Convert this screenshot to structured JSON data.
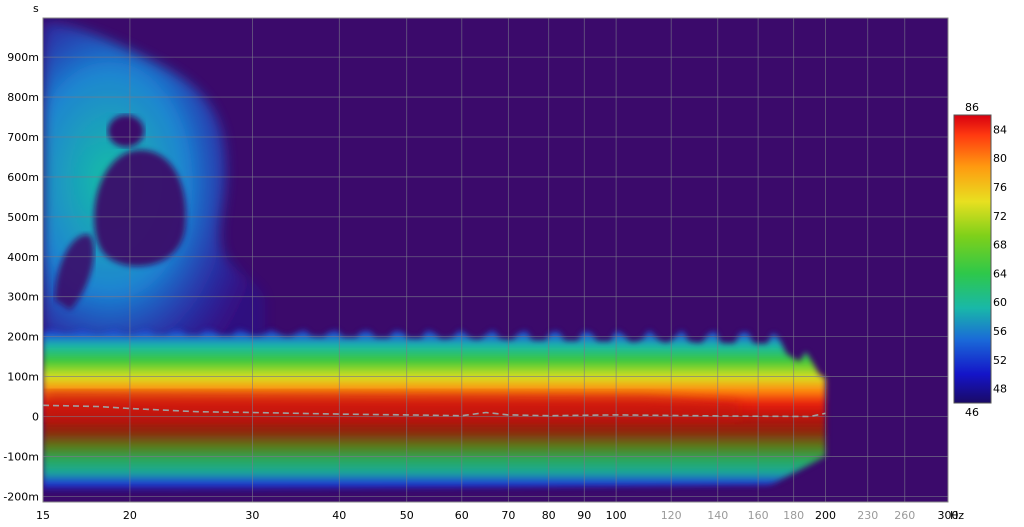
{
  "chart_data": {
    "type": "heatmap",
    "subtype": "spectrogram",
    "xlabel": "Hz",
    "ylabel": "s",
    "x_scale": "log",
    "xlim": [
      15,
      300
    ],
    "ylim": [
      -0.22,
      1.0
    ],
    "x_ticks": [
      {
        "value": 15,
        "label": "15",
        "muted": false
      },
      {
        "value": 20,
        "label": "20",
        "muted": false
      },
      {
        "value": 30,
        "label": "30",
        "muted": false
      },
      {
        "value": 40,
        "label": "40",
        "muted": false
      },
      {
        "value": 50,
        "label": "50",
        "muted": false
      },
      {
        "value": 60,
        "label": "60",
        "muted": false
      },
      {
        "value": 70,
        "label": "70",
        "muted": false
      },
      {
        "value": 80,
        "label": "80",
        "muted": false
      },
      {
        "value": 90,
        "label": "90",
        "muted": false
      },
      {
        "value": 100,
        "label": "100",
        "muted": false
      },
      {
        "value": 120,
        "label": "120",
        "muted": true
      },
      {
        "value": 140,
        "label": "140",
        "muted": true
      },
      {
        "value": 160,
        "label": "160",
        "muted": true
      },
      {
        "value": 180,
        "label": "180",
        "muted": true
      },
      {
        "value": 200,
        "label": "200",
        "muted": false
      },
      {
        "value": 230,
        "label": "230",
        "muted": true
      },
      {
        "value": 260,
        "label": "260",
        "muted": true
      },
      {
        "value": 300,
        "label": "300",
        "muted": false
      }
    ],
    "y_ticks": [
      {
        "value": 0.9,
        "label": "900m"
      },
      {
        "value": 0.8,
        "label": "800m"
      },
      {
        "value": 0.7,
        "label": "700m"
      },
      {
        "value": 0.6,
        "label": "600m"
      },
      {
        "value": 0.5,
        "label": "500m"
      },
      {
        "value": 0.4,
        "label": "400m"
      },
      {
        "value": 0.3,
        "label": "300m"
      },
      {
        "value": 0.2,
        "label": "200m"
      },
      {
        "value": 0.1,
        "label": "100m"
      },
      {
        "value": 0,
        "label": "0"
      },
      {
        "value": -0.1,
        "label": "-100m"
      },
      {
        "value": -0.2,
        "label": "-200m"
      }
    ],
    "colorbar": {
      "min": 46,
      "max": 86,
      "ticks": [
        48,
        52,
        56,
        60,
        64,
        68,
        72,
        76,
        80,
        84
      ],
      "min_label": "46",
      "max_label": "86",
      "background_color": "#3b0a6b"
    },
    "data_extent_hz": [
      15,
      200
    ],
    "peak_trace_seconds": [
      {
        "hz": 15,
        "t": 0.028
      },
      {
        "hz": 18,
        "t": 0.025
      },
      {
        "hz": 20,
        "t": 0.02
      },
      {
        "hz": 25,
        "t": 0.012
      },
      {
        "hz": 30,
        "t": 0.01
      },
      {
        "hz": 40,
        "t": 0.006
      },
      {
        "hz": 50,
        "t": 0.004
      },
      {
        "hz": 60,
        "t": 0.002
      },
      {
        "hz": 65,
        "t": 0.01
      },
      {
        "hz": 70,
        "t": 0.004
      },
      {
        "hz": 80,
        "t": 0.002
      },
      {
        "hz": 100,
        "t": 0.004
      },
      {
        "hz": 150,
        "t": 0.001
      },
      {
        "hz": 190,
        "t": 0.0
      },
      {
        "hz": 200,
        "t": 0.008
      }
    ]
  }
}
